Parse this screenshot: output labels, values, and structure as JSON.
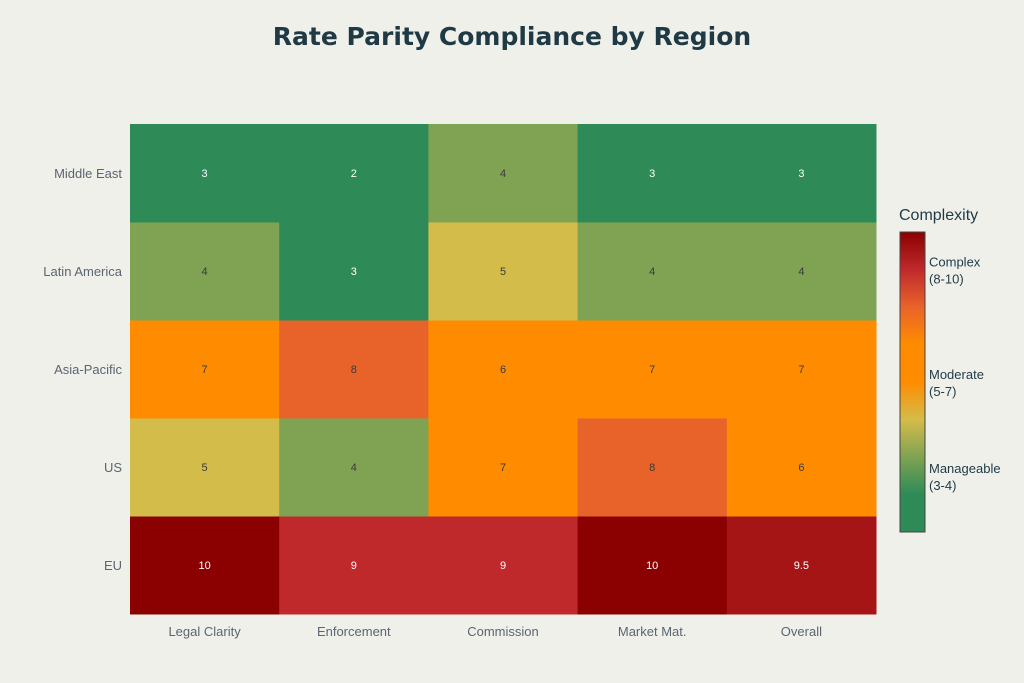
{
  "chart_data": {
    "type": "heatmap",
    "title": "Rate Parity Compliance by Region",
    "x_categories": [
      "Legal Clarity",
      "Enforcement",
      "Commission",
      "Market Mat.",
      "Overall"
    ],
    "y_categories": [
      "EU",
      "US",
      "Asia-Pacific",
      "Latin America",
      "Middle East"
    ],
    "z": [
      [
        10,
        9,
        9,
        10,
        9.5
      ],
      [
        5,
        4,
        7,
        8,
        6
      ],
      [
        7,
        8,
        6,
        7,
        7
      ],
      [
        4,
        3,
        5,
        4,
        4
      ],
      [
        3,
        2,
        4,
        3,
        3
      ]
    ],
    "zlim": [
      2,
      10
    ],
    "colorscale": [
      [
        2,
        "#2E8B57"
      ],
      [
        3,
        "#2E8B57"
      ],
      [
        4,
        "#7FA352"
      ],
      [
        5,
        "#D4BC4A"
      ],
      [
        6,
        "#FF8C00"
      ],
      [
        7,
        "#FF8C00"
      ],
      [
        8,
        "#E8632A"
      ],
      [
        9,
        "#C0292B"
      ],
      [
        10,
        "#8B0000"
      ]
    ],
    "colorbar": {
      "title": "Complexity",
      "ticks": [
        {
          "value": 9,
          "label": [
            "Complex",
            "(8-10)"
          ]
        },
        {
          "value": 6,
          "label": [
            "Moderate",
            "(5-7)"
          ]
        },
        {
          "value": 3.5,
          "label": [
            "Manageable",
            "(3-4)"
          ]
        }
      ]
    }
  }
}
